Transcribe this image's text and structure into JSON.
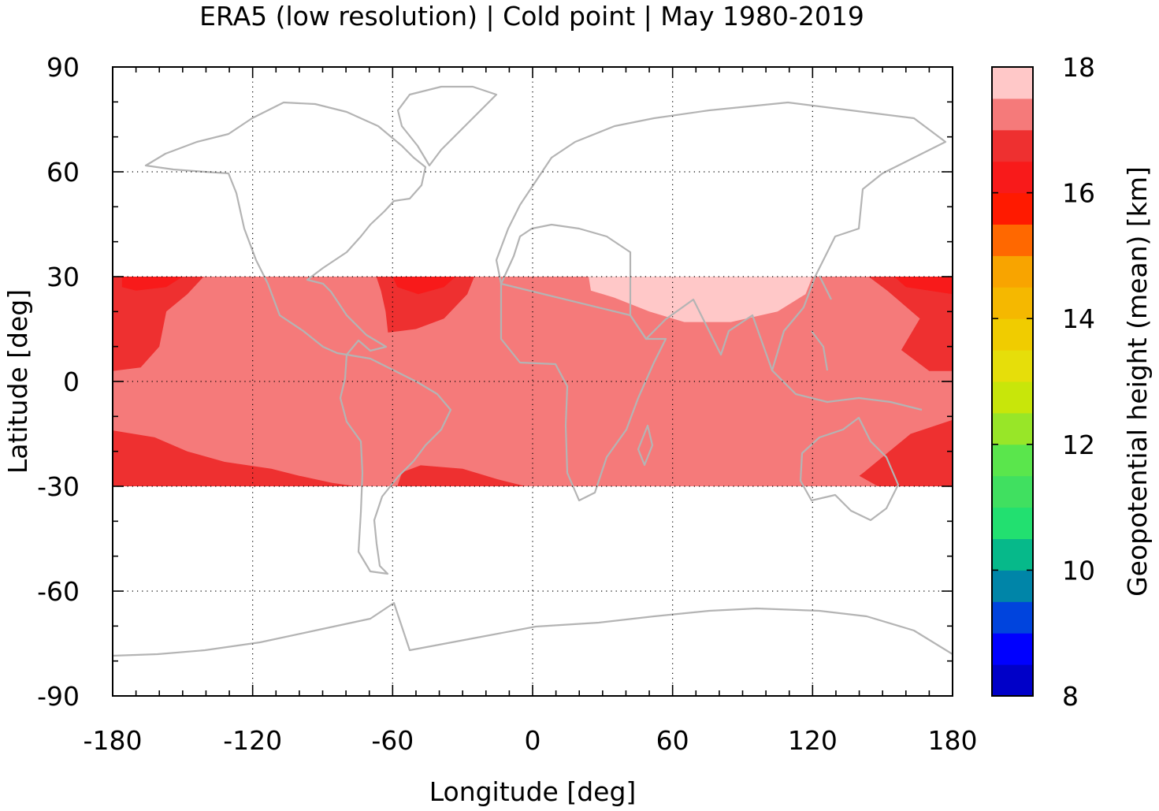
{
  "chart_data": {
    "type": "heatmap",
    "title": "ERA5 (low resolution) | Cold point | May 1980-2019",
    "xlabel": "Longitude [deg]",
    "ylabel": "Latitude [deg]",
    "colorbar_label": "Geopotential height (mean) [km]",
    "xlim": [
      -180,
      180
    ],
    "ylim": [
      -90,
      90
    ],
    "x_ticks": [
      -180,
      -120,
      -60,
      0,
      60,
      120,
      180
    ],
    "y_ticks": [
      90,
      60,
      30,
      0,
      -30,
      -60,
      -90
    ],
    "x_tick_labels": [
      "-180",
      "-120",
      "-60",
      "0",
      "60",
      "120",
      "180"
    ],
    "y_tick_labels": [
      "90",
      "60",
      "30",
      "0",
      "-30",
      "-60",
      "-90"
    ],
    "data_lat_range": [
      -30,
      30
    ],
    "grid": "dotted",
    "colorbar": {
      "range": [
        8,
        18
      ],
      "step": 0.5,
      "ticks": [
        8,
        10,
        12,
        14,
        16,
        18
      ],
      "tick_labels": [
        "8",
        "10",
        "12",
        "14",
        "16",
        "18"
      ],
      "colors": [
        "#0a0a2e",
        "#000c8c",
        "#0000c8",
        "#0000ff",
        "#0044dd",
        "#0085a8",
        "#06b98a",
        "#22e070",
        "#40e060",
        "#5ae64c",
        "#98e628",
        "#c8e60a",
        "#e6de0a",
        "#f0cc00",
        "#f5b800",
        "#f8a400",
        "#ff6800",
        "#ff1a00",
        "#f81a1a",
        "#ee3030",
        "#f57a7a",
        "#ffc8c8"
      ]
    },
    "field_levels": [
      {
        "name": "17.0-17.5 km",
        "value": 17.25,
        "color": "#f57a7a"
      },
      {
        "name": "16.5-17.0 km",
        "value": 16.75,
        "color": "#ee3030"
      },
      {
        "name": "16.0-16.5 km",
        "value": 16.25,
        "color": "#f81a1a"
      },
      {
        "name": "17.5-18.0 km",
        "value": 17.75,
        "color": "#ffc8c8"
      }
    ],
    "regions": [
      {
        "level": 1,
        "lonlat": [
          [
            -180,
            30
          ],
          [
            -141,
            30
          ],
          [
            -148,
            25
          ],
          [
            -157,
            20
          ],
          [
            -160,
            10
          ],
          [
            -168,
            4
          ],
          [
            -180,
            3
          ]
        ]
      },
      {
        "level": 1,
        "lonlat": [
          [
            -180,
            -14
          ],
          [
            -162,
            -16
          ],
          [
            -148,
            -20
          ],
          [
            -132,
            -23
          ],
          [
            -112,
            -25
          ],
          [
            -100,
            -27
          ],
          [
            -86,
            -29
          ],
          [
            -76,
            -30
          ],
          [
            -180,
            -30
          ]
        ]
      },
      {
        "level": 1,
        "lonlat": [
          [
            -67,
            30
          ],
          [
            -25,
            30
          ],
          [
            -28,
            25
          ],
          [
            -38,
            18
          ],
          [
            -50,
            15
          ],
          [
            -62,
            14
          ],
          [
            -63,
            20
          ],
          [
            -65,
            26
          ]
        ]
      },
      {
        "level": 1,
        "lonlat": [
          [
            -58,
            -30
          ],
          [
            -3,
            -30
          ],
          [
            -15,
            -28
          ],
          [
            -30,
            -25
          ],
          [
            -48,
            -24
          ],
          [
            -56,
            -26
          ]
        ]
      },
      {
        "level": 1,
        "lonlat": [
          [
            144,
            30
          ],
          [
            180,
            30
          ],
          [
            180,
            3
          ],
          [
            170,
            3
          ],
          [
            158,
            9
          ],
          [
            166,
            18
          ],
          [
            152,
            26
          ]
        ]
      },
      {
        "level": 1,
        "lonlat": [
          [
            142,
            -26
          ],
          [
            162,
            -15
          ],
          [
            180,
            -11
          ],
          [
            180,
            -30
          ],
          [
            148,
            -30
          ],
          [
            140,
            -27
          ]
        ]
      },
      {
        "level": 2,
        "lonlat": [
          [
            -176,
            30
          ],
          [
            -150,
            30
          ],
          [
            -157,
            27
          ],
          [
            -170,
            26
          ],
          [
            -176,
            27
          ]
        ]
      },
      {
        "level": 2,
        "lonlat": [
          [
            -60,
            30
          ],
          [
            -33,
            30
          ],
          [
            -38,
            27
          ],
          [
            -49,
            25
          ],
          [
            -58,
            27
          ]
        ]
      },
      {
        "level": 2,
        "lonlat": [
          [
            155,
            30
          ],
          [
            180,
            30
          ],
          [
            180,
            25
          ],
          [
            170,
            26
          ],
          [
            160,
            27
          ]
        ]
      },
      {
        "level": 3,
        "lonlat": [
          [
            24,
            30
          ],
          [
            120,
            30
          ],
          [
            117,
            25
          ],
          [
            105,
            20
          ],
          [
            85,
            17
          ],
          [
            65,
            17
          ],
          [
            50,
            20
          ],
          [
            35,
            24
          ],
          [
            25,
            26
          ]
        ]
      }
    ]
  }
}
